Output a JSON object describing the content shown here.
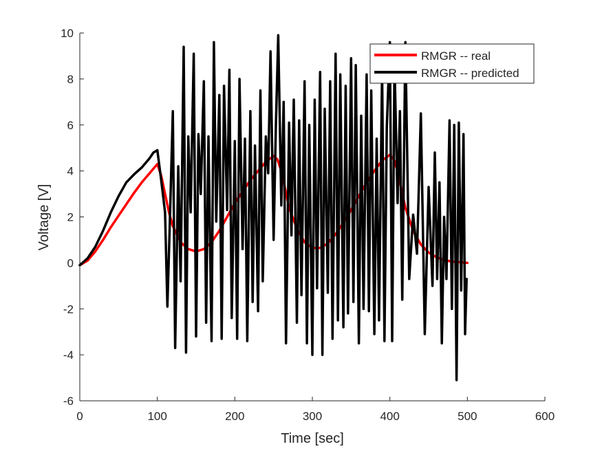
{
  "chart_data": {
    "type": "line",
    "title": "",
    "xlabel": "Time [sec]",
    "ylabel": "Voltage [V]",
    "xlim": [
      0,
      600
    ],
    "ylim": [
      -6,
      10
    ],
    "xticks": [
      0,
      100,
      200,
      300,
      400,
      500,
      600
    ],
    "yticks": [
      -6,
      -4,
      -2,
      0,
      2,
      4,
      6,
      8,
      10
    ],
    "grid": false,
    "legend_position": "top-right",
    "series": [
      {
        "name": "RMGR -- real",
        "color": "#ff0000",
        "x": [
          0,
          10,
          20,
          30,
          40,
          50,
          60,
          70,
          80,
          90,
          100,
          105,
          110,
          115,
          120,
          130,
          140,
          150,
          160,
          170,
          180,
          190,
          200,
          210,
          220,
          230,
          240,
          250,
          255,
          260,
          265,
          270,
          280,
          290,
          300,
          310,
          320,
          330,
          340,
          350,
          360,
          370,
          380,
          390,
          400,
          405,
          410,
          415,
          420,
          430,
          440,
          450,
          460,
          470,
          480,
          490,
          500
        ],
        "y": [
          -0.1,
          0.1,
          0.5,
          1.0,
          1.55,
          2.05,
          2.55,
          3.05,
          3.5,
          3.9,
          4.3,
          3.8,
          3.0,
          2.2,
          1.6,
          0.9,
          0.6,
          0.5,
          0.6,
          0.9,
          1.4,
          2.0,
          2.6,
          3.1,
          3.6,
          4.0,
          4.4,
          4.65,
          4.5,
          4.0,
          3.2,
          2.4,
          1.5,
          0.9,
          0.65,
          0.65,
          0.85,
          1.25,
          1.75,
          2.3,
          2.9,
          3.5,
          4.0,
          4.45,
          4.7,
          4.5,
          4.0,
          3.2,
          2.4,
          1.4,
          0.8,
          0.45,
          0.25,
          0.12,
          0.06,
          0.03,
          0.0
        ]
      },
      {
        "name": "RMGR -- predicted",
        "color": "#000000",
        "x": [
          0,
          10,
          20,
          30,
          40,
          50,
          60,
          70,
          80,
          90,
          95,
          100,
          105,
          110,
          113,
          116,
          120,
          123,
          127,
          130,
          134,
          137,
          140,
          143,
          147,
          150,
          153,
          156,
          160,
          163,
          166,
          170,
          173,
          176,
          180,
          183,
          186,
          190,
          193,
          196,
          200,
          203,
          206,
          210,
          213,
          216,
          220,
          223,
          226,
          230,
          233,
          236,
          240,
          243,
          246,
          250,
          253,
          256,
          260,
          263,
          266,
          270,
          273,
          276,
          280,
          283,
          286,
          290,
          293,
          296,
          300,
          303,
          306,
          310,
          313,
          316,
          320,
          323,
          326,
          330,
          333,
          336,
          340,
          343,
          346,
          350,
          353,
          356,
          360,
          363,
          366,
          370,
          373,
          376,
          380,
          383,
          386,
          390,
          393,
          396,
          400,
          403,
          406,
          410,
          413,
          416,
          420,
          425,
          430,
          435,
          440,
          445,
          450,
          455,
          458,
          461,
          464,
          467,
          470,
          473,
          477,
          480,
          483,
          486,
          489,
          492,
          495,
          497,
          499
        ],
        "y": [
          -0.1,
          0.2,
          0.7,
          1.4,
          2.2,
          2.9,
          3.5,
          3.85,
          4.15,
          4.55,
          4.8,
          4.9,
          3.6,
          2.2,
          -1.9,
          1.6,
          6.6,
          -3.7,
          4.2,
          -0.8,
          9.4,
          -3.9,
          5.5,
          2.2,
          9.1,
          -3.2,
          5.6,
          3.0,
          7.9,
          -2.6,
          5.5,
          -3.4,
          9.6,
          1.8,
          7.3,
          -3.3,
          7.7,
          2.3,
          8.4,
          -2.4,
          5.3,
          -3.3,
          8.0,
          0.6,
          5.4,
          -3.4,
          6.6,
          -1.7,
          5.1,
          -2.1,
          7.5,
          -0.8,
          5.5,
          3.9,
          9.2,
          1.0,
          6.0,
          9.9,
          2.5,
          7.0,
          -3.5,
          6.1,
          1.2,
          7.1,
          -2.6,
          6.2,
          -1.4,
          7.9,
          -3.5,
          6.0,
          -4.0,
          7.1,
          -1.1,
          8.3,
          -4.0,
          6.7,
          -1.3,
          7.9,
          -3.3,
          9.1,
          -2.5,
          8.2,
          -2.8,
          7.7,
          -2.2,
          8.9,
          -1.7,
          8.6,
          -3.5,
          6.4,
          -2.0,
          8.2,
          -2.1,
          7.5,
          -3.1,
          5.4,
          -2.5,
          8.4,
          -3.4,
          5.9,
          9.6,
          -3.4,
          8.7,
          2.6,
          6.6,
          -1.6,
          9.6,
          -0.7,
          2.1,
          0.4,
          6.5,
          -3.1,
          3.3,
          -1.0,
          4.8,
          -0.7,
          3.5,
          -3.5,
          2.0,
          -0.7,
          6.2,
          -2.0,
          6.0,
          -5.1,
          6.1,
          -1.2,
          5.6,
          -3.1,
          -0.7
        ]
      }
    ]
  }
}
